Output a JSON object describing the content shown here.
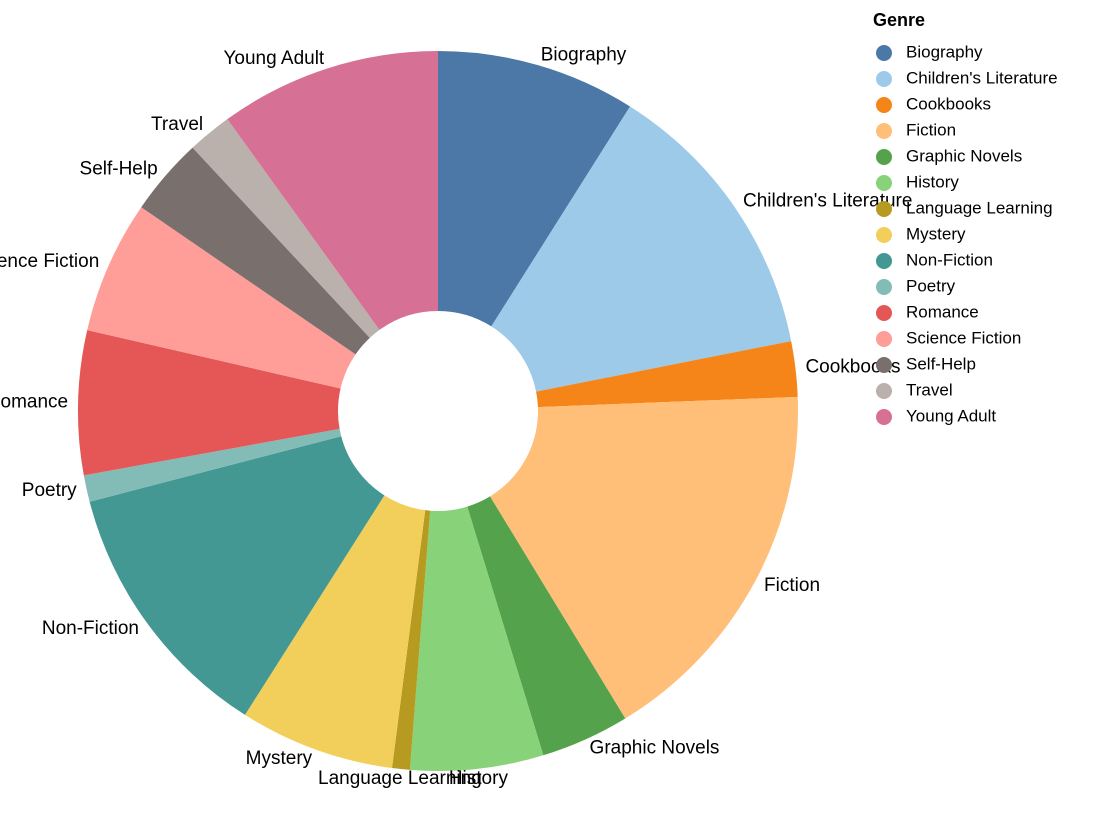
{
  "chart_data": {
    "type": "pie",
    "donut": true,
    "legend_title": "Genre",
    "legend_position": "top-right",
    "categories": [
      "Biography",
      "Children's Literature",
      "Cookbooks",
      "Fiction",
      "Graphic Novels",
      "History",
      "Language Learning",
      "Mystery",
      "Non-Fiction",
      "Poetry",
      "Romance",
      "Science Fiction",
      "Self-Help",
      "Travel",
      "Young Adult"
    ],
    "values": [
      9,
      13,
      2.5,
      17,
      4,
      6,
      0.8,
      7,
      12,
      1.2,
      6.5,
      6,
      3.5,
      2,
      10
    ],
    "colors": [
      "#4c78a8",
      "#9ecae9",
      "#f58518",
      "#ffbf79",
      "#54a24b",
      "#88d27a",
      "#b79a20",
      "#f2cf5b",
      "#439894",
      "#83bcb6",
      "#e45756",
      "#ff9d98",
      "#79706e",
      "#bab0ac",
      "#d67195"
    ]
  }
}
